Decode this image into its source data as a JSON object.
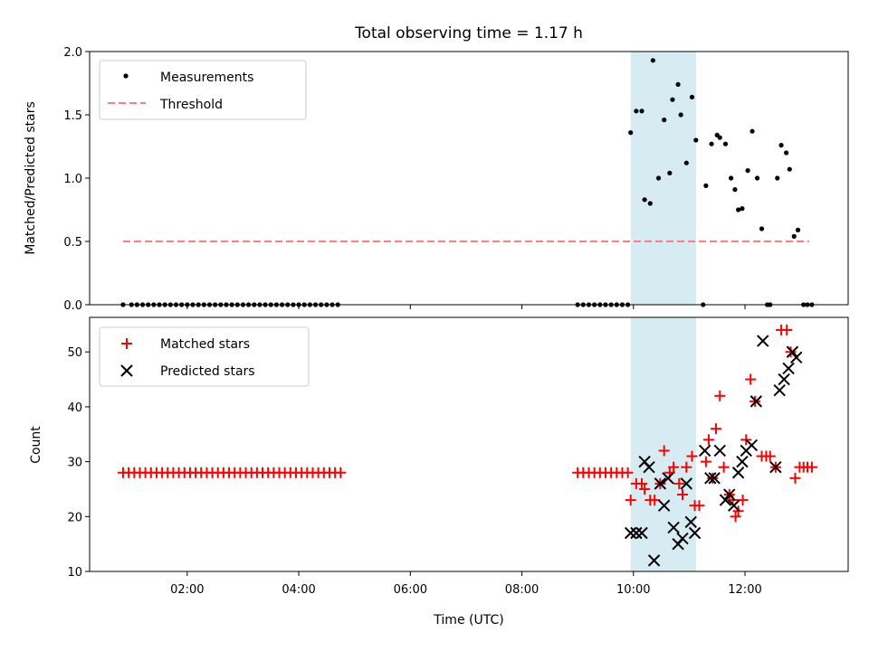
{
  "chart_data": {
    "type": "scatter",
    "title": "Total observing time = 1.17 h",
    "xlabel": "Time (UTC)",
    "x_unit": "hours UTC",
    "xticks": [
      2,
      4,
      6,
      8,
      10,
      12
    ],
    "xtick_labels": [
      "02:00",
      "04:00",
      "06:00",
      "08:00",
      "10:00",
      "12:00"
    ],
    "xlim": [
      0.25,
      13.85
    ],
    "highlight_span": [
      9.95,
      11.12
    ],
    "highlight_color": "#add8e6",
    "panels": [
      {
        "id": "ratio",
        "ylabel": "Matched/Predicted stars",
        "ylim": [
          0,
          2.0
        ],
        "yticks": [
          0.0,
          0.5,
          1.0,
          1.5,
          2.0
        ],
        "ytick_labels": [
          "0.0",
          "0.5",
          "1.0",
          "1.5",
          "2.0"
        ],
        "legend_position": "upper left",
        "series": [
          {
            "name": "Measurements",
            "marker": "dot",
            "color": "#000000",
            "points": [
              [
                0.85,
                0
              ],
              [
                1.0,
                0
              ],
              [
                1.1,
                0
              ],
              [
                1.2,
                0
              ],
              [
                1.3,
                0
              ],
              [
                1.4,
                0
              ],
              [
                1.5,
                0
              ],
              [
                1.6,
                0
              ],
              [
                1.7,
                0
              ],
              [
                1.8,
                0
              ],
              [
                1.9,
                0
              ],
              [
                2.0,
                0
              ],
              [
                2.1,
                0
              ],
              [
                2.2,
                0
              ],
              [
                2.3,
                0
              ],
              [
                2.4,
                0
              ],
              [
                2.5,
                0
              ],
              [
                2.6,
                0
              ],
              [
                2.7,
                0
              ],
              [
                2.8,
                0
              ],
              [
                2.9,
                0
              ],
              [
                3.0,
                0
              ],
              [
                3.1,
                0
              ],
              [
                3.2,
                0
              ],
              [
                3.3,
                0
              ],
              [
                3.4,
                0
              ],
              [
                3.5,
                0
              ],
              [
                3.6,
                0
              ],
              [
                3.7,
                0
              ],
              [
                3.8,
                0
              ],
              [
                3.9,
                0
              ],
              [
                4.0,
                0
              ],
              [
                4.1,
                0
              ],
              [
                4.2,
                0
              ],
              [
                4.3,
                0
              ],
              [
                4.4,
                0
              ],
              [
                4.5,
                0
              ],
              [
                4.6,
                0
              ],
              [
                4.7,
                0
              ],
              [
                9.0,
                0
              ],
              [
                9.1,
                0
              ],
              [
                9.2,
                0
              ],
              [
                9.3,
                0
              ],
              [
                9.4,
                0
              ],
              [
                9.5,
                0
              ],
              [
                9.6,
                0
              ],
              [
                9.7,
                0
              ],
              [
                9.8,
                0
              ],
              [
                9.9,
                0
              ],
              [
                9.95,
                1.36
              ],
              [
                10.05,
                1.53
              ],
              [
                10.15,
                1.53
              ],
              [
                10.2,
                0.83
              ],
              [
                10.3,
                0.8
              ],
              [
                10.35,
                1.93
              ],
              [
                10.45,
                1.0
              ],
              [
                10.55,
                1.46
              ],
              [
                10.65,
                1.04
              ],
              [
                10.7,
                1.62
              ],
              [
                10.8,
                1.74
              ],
              [
                10.85,
                1.5
              ],
              [
                10.95,
                1.12
              ],
              [
                11.05,
                1.64
              ],
              [
                11.12,
                1.3
              ],
              [
                11.25,
                0
              ],
              [
                11.3,
                0.94
              ],
              [
                11.4,
                1.27
              ],
              [
                11.5,
                1.34
              ],
              [
                11.55,
                1.32
              ],
              [
                11.65,
                1.27
              ],
              [
                11.75,
                1.0
              ],
              [
                11.82,
                0.91
              ],
              [
                11.88,
                0.75
              ],
              [
                11.95,
                0.76
              ],
              [
                12.05,
                1.06
              ],
              [
                12.13,
                1.37
              ],
              [
                12.22,
                1.0
              ],
              [
                12.3,
                0.6
              ],
              [
                12.4,
                0
              ],
              [
                12.45,
                0
              ],
              [
                12.58,
                1.0
              ],
              [
                12.65,
                1.26
              ],
              [
                12.74,
                1.2
              ],
              [
                12.8,
                1.07
              ],
              [
                12.88,
                0.54
              ],
              [
                12.95,
                0.59
              ],
              [
                13.05,
                0
              ],
              [
                13.12,
                0
              ],
              [
                13.2,
                0
              ]
            ]
          },
          {
            "name": "Threshold",
            "marker": "dashed-line",
            "color": "#ff7f7f",
            "points": [
              [
                0.85,
                0.5
              ],
              [
                13.15,
                0.5
              ]
            ]
          }
        ]
      },
      {
        "id": "count",
        "ylabel": "Count",
        "ylim": [
          10,
          56.3
        ],
        "yticks": [
          10,
          20,
          30,
          40,
          50
        ],
        "ytick_labels": [
          "10",
          "20",
          "30",
          "40",
          "50"
        ],
        "legend_position": "upper left",
        "series": [
          {
            "name": "Matched stars",
            "marker": "plus",
            "color": "#ff0000",
            "points": [
              [
                0.85,
                28
              ],
              [
                0.95,
                28
              ],
              [
                1.05,
                28
              ],
              [
                1.15,
                28
              ],
              [
                1.25,
                28
              ],
              [
                1.35,
                28
              ],
              [
                1.45,
                28
              ],
              [
                1.55,
                28
              ],
              [
                1.65,
                28
              ],
              [
                1.75,
                28
              ],
              [
                1.85,
                28
              ],
              [
                1.95,
                28
              ],
              [
                2.05,
                28
              ],
              [
                2.15,
                28
              ],
              [
                2.25,
                28
              ],
              [
                2.35,
                28
              ],
              [
                2.45,
                28
              ],
              [
                2.55,
                28
              ],
              [
                2.65,
                28
              ],
              [
                2.75,
                28
              ],
              [
                2.85,
                28
              ],
              [
                2.95,
                28
              ],
              [
                3.05,
                28
              ],
              [
                3.15,
                28
              ],
              [
                3.25,
                28
              ],
              [
                3.35,
                28
              ],
              [
                3.45,
                28
              ],
              [
                3.55,
                28
              ],
              [
                3.65,
                28
              ],
              [
                3.75,
                28
              ],
              [
                3.85,
                28
              ],
              [
                3.95,
                28
              ],
              [
                4.05,
                28
              ],
              [
                4.15,
                28
              ],
              [
                4.25,
                28
              ],
              [
                4.35,
                28
              ],
              [
                4.45,
                28
              ],
              [
                4.55,
                28
              ],
              [
                4.65,
                28
              ],
              [
                4.75,
                28
              ],
              [
                9.0,
                28
              ],
              [
                9.1,
                28
              ],
              [
                9.2,
                28
              ],
              [
                9.3,
                28
              ],
              [
                9.4,
                28
              ],
              [
                9.5,
                28
              ],
              [
                9.6,
                28
              ],
              [
                9.7,
                28
              ],
              [
                9.8,
                28
              ],
              [
                9.9,
                28
              ],
              [
                9.95,
                23
              ],
              [
                10.05,
                26
              ],
              [
                10.15,
                26
              ],
              [
                10.2,
                25
              ],
              [
                10.3,
                23
              ],
              [
                10.38,
                23
              ],
              [
                10.48,
                26
              ],
              [
                10.55,
                32
              ],
              [
                10.65,
                28
              ],
              [
                10.72,
                29
              ],
              [
                10.82,
                26
              ],
              [
                10.88,
                24
              ],
              [
                10.95,
                29
              ],
              [
                11.05,
                31
              ],
              [
                11.1,
                22
              ],
              [
                11.18,
                22
              ],
              [
                11.3,
                30
              ],
              [
                11.35,
                34
              ],
              [
                11.42,
                27
              ],
              [
                11.48,
                36
              ],
              [
                11.55,
                42
              ],
              [
                11.62,
                29
              ],
              [
                11.72,
                24
              ],
              [
                11.78,
                23
              ],
              [
                11.83,
                20
              ],
              [
                11.88,
                21
              ],
              [
                11.96,
                23
              ],
              [
                12.02,
                34
              ],
              [
                12.1,
                45
              ],
              [
                12.18,
                41
              ],
              [
                12.3,
                31
              ],
              [
                12.38,
                31
              ],
              [
                12.45,
                31
              ],
              [
                12.55,
                29
              ],
              [
                12.65,
                54
              ],
              [
                12.75,
                54
              ],
              [
                12.82,
                50
              ],
              [
                12.9,
                27
              ],
              [
                12.98,
                29
              ],
              [
                13.05,
                29
              ],
              [
                13.12,
                29
              ],
              [
                13.2,
                29
              ]
            ]
          },
          {
            "name": "Predicted stars",
            "marker": "x",
            "color": "#000000",
            "points": [
              [
                9.95,
                17
              ],
              [
                10.05,
                17
              ],
              [
                10.15,
                17
              ],
              [
                10.2,
                30
              ],
              [
                10.28,
                29
              ],
              [
                10.37,
                12
              ],
              [
                10.48,
                26
              ],
              [
                10.55,
                22
              ],
              [
                10.62,
                27
              ],
              [
                10.72,
                18
              ],
              [
                10.8,
                15
              ],
              [
                10.88,
                16
              ],
              [
                10.95,
                26
              ],
              [
                11.03,
                19
              ],
              [
                11.1,
                17
              ],
              [
                11.28,
                32
              ],
              [
                11.38,
                27
              ],
              [
                11.45,
                27
              ],
              [
                11.55,
                32
              ],
              [
                11.65,
                23
              ],
              [
                11.72,
                24
              ],
              [
                11.8,
                22
              ],
              [
                11.88,
                28
              ],
              [
                11.95,
                30
              ],
              [
                12.02,
                32
              ],
              [
                12.12,
                33
              ],
              [
                12.2,
                41
              ],
              [
                12.32,
                52
              ],
              [
                12.55,
                29
              ],
              [
                12.62,
                43
              ],
              [
                12.7,
                45
              ],
              [
                12.78,
                47
              ],
              [
                12.85,
                50
              ],
              [
                12.92,
                49
              ]
            ]
          }
        ]
      }
    ]
  }
}
